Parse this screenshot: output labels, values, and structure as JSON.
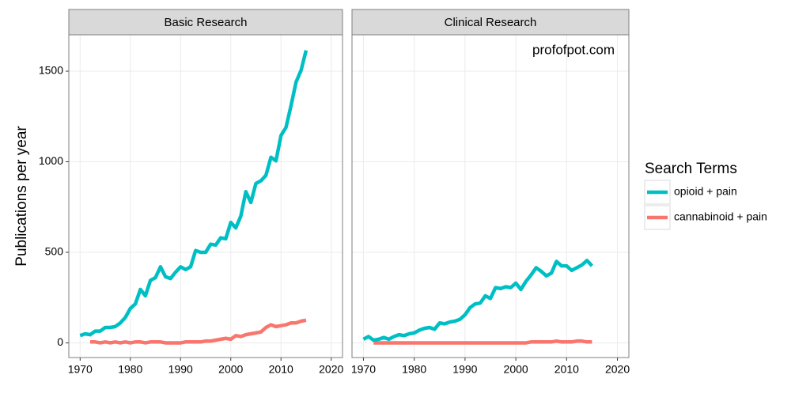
{
  "chart_data": [
    {
      "type": "line",
      "title": "Basic Research",
      "ylabel": "Publications per year",
      "legend_title": "Search Terms",
      "x": [
        1970,
        1971,
        1972,
        1973,
        1974,
        1975,
        1976,
        1977,
        1978,
        1979,
        1980,
        1981,
        1982,
        1983,
        1984,
        1985,
        1986,
        1987,
        1988,
        1989,
        1990,
        1991,
        1992,
        1993,
        1994,
        1995,
        1996,
        1997,
        1998,
        1999,
        2000,
        2001,
        2002,
        2003,
        2004,
        2005,
        2006,
        2007,
        2008,
        2009,
        2010,
        2011,
        2012,
        2013,
        2014,
        2015
      ],
      "series": [
        {
          "name": "opioid + pain",
          "color": "#00bfc4",
          "values": [
            40,
            50,
            45,
            65,
            65,
            85,
            85,
            90,
            110,
            140,
            190,
            215,
            295,
            260,
            345,
            360,
            420,
            365,
            355,
            390,
            420,
            405,
            420,
            510,
            500,
            500,
            545,
            540,
            580,
            575,
            665,
            635,
            700,
            835,
            775,
            880,
            895,
            925,
            1025,
            1005,
            1145,
            1190,
            1310,
            1440,
            1505,
            1615
          ]
        },
        {
          "name": "cannabinoid + pain",
          "color": "#f8766d",
          "values": [
            null,
            null,
            5,
            5,
            0,
            5,
            0,
            5,
            0,
            5,
            0,
            5,
            5,
            0,
            5,
            5,
            5,
            0,
            0,
            0,
            0,
            5,
            5,
            5,
            5,
            10,
            10,
            15,
            20,
            25,
            20,
            40,
            35,
            45,
            50,
            55,
            60,
            85,
            100,
            90,
            95,
            100,
            110,
            110,
            120,
            125
          ]
        }
      ],
      "xlim": [
        1967.75,
        2022.25
      ],
      "xticks": [
        1970,
        1980,
        1990,
        2000,
        2010,
        2020
      ],
      "ylim": [
        -81,
        1701
      ],
      "yticks": [
        0,
        500,
        1000,
        1500
      ],
      "grid": true
    },
    {
      "type": "line",
      "title": "Clinical Research",
      "annotation": "profofpot.com",
      "x": [
        1970,
        1971,
        1972,
        1973,
        1974,
        1975,
        1976,
        1977,
        1978,
        1979,
        1980,
        1981,
        1982,
        1983,
        1984,
        1985,
        1986,
        1987,
        1988,
        1989,
        1990,
        1991,
        1992,
        1993,
        1994,
        1995,
        1996,
        1997,
        1998,
        1999,
        2000,
        2001,
        2002,
        2003,
        2004,
        2005,
        2006,
        2007,
        2008,
        2009,
        2010,
        2011,
        2012,
        2013,
        2014,
        2015
      ],
      "series": [
        {
          "color": "#00bfc4",
          "values": [
            20,
            35,
            15,
            20,
            30,
            20,
            35,
            45,
            40,
            50,
            55,
            70,
            80,
            85,
            75,
            110,
            105,
            115,
            120,
            130,
            155,
            195,
            215,
            220,
            260,
            245,
            305,
            300,
            310,
            305,
            330,
            295,
            340,
            375,
            415,
            395,
            370,
            385,
            450,
            425,
            425,
            400,
            415,
            430,
            455,
            425
          ]
        },
        {
          "color": "#f8766d",
          "values": [
            null,
            null,
            0,
            0,
            0,
            0,
            0,
            0,
            0,
            0,
            0,
            0,
            0,
            0,
            0,
            0,
            0,
            0,
            0,
            0,
            0,
            0,
            0,
            0,
            0,
            0,
            0,
            0,
            0,
            0,
            0,
            0,
            0,
            5,
            5,
            5,
            5,
            5,
            10,
            5,
            5,
            5,
            10,
            10,
            5,
            5
          ]
        }
      ],
      "xlim": [
        1967.75,
        2022.25
      ],
      "xticks": [
        1970,
        1980,
        1990,
        2000,
        2010,
        2020
      ],
      "ylim": [
        -81,
        1701
      ],
      "yticks": [
        0,
        500,
        1000,
        1500
      ],
      "grid": true
    }
  ]
}
